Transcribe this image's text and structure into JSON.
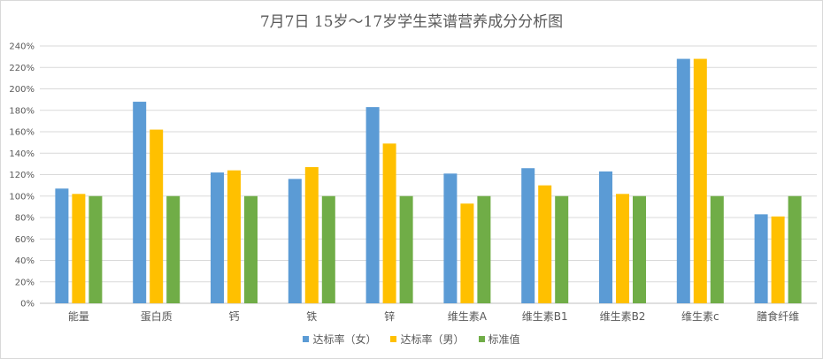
{
  "chart_data": {
    "type": "bar",
    "title": "7月7日 15岁～17岁学生菜谱营养成分分析图",
    "categories": [
      "能量",
      "蛋白质",
      "钙",
      "铁",
      "锌",
      "维生素A",
      "维生素B1",
      "维生素B2",
      "维生素c",
      "膳食纤维"
    ],
    "series": [
      {
        "name": "达标率（女）",
        "color": "#5b9bd5",
        "values": [
          107,
          188,
          122,
          116,
          183,
          121,
          126,
          123,
          228,
          83
        ]
      },
      {
        "name": "达标率（男）",
        "color": "#ffc000",
        "values": [
          102,
          162,
          124,
          127,
          149,
          93,
          110,
          102,
          228,
          81
        ]
      },
      {
        "name": "标准值",
        "color": "#70ad47",
        "values": [
          100,
          100,
          100,
          100,
          100,
          100,
          100,
          100,
          100,
          100
        ]
      }
    ],
    "ylim": [
      0,
      240
    ],
    "ytick_step": 20,
    "y_tick_format": "percent",
    "xlabel": "",
    "ylabel": "",
    "grid": true,
    "legend_position": "bottom"
  }
}
